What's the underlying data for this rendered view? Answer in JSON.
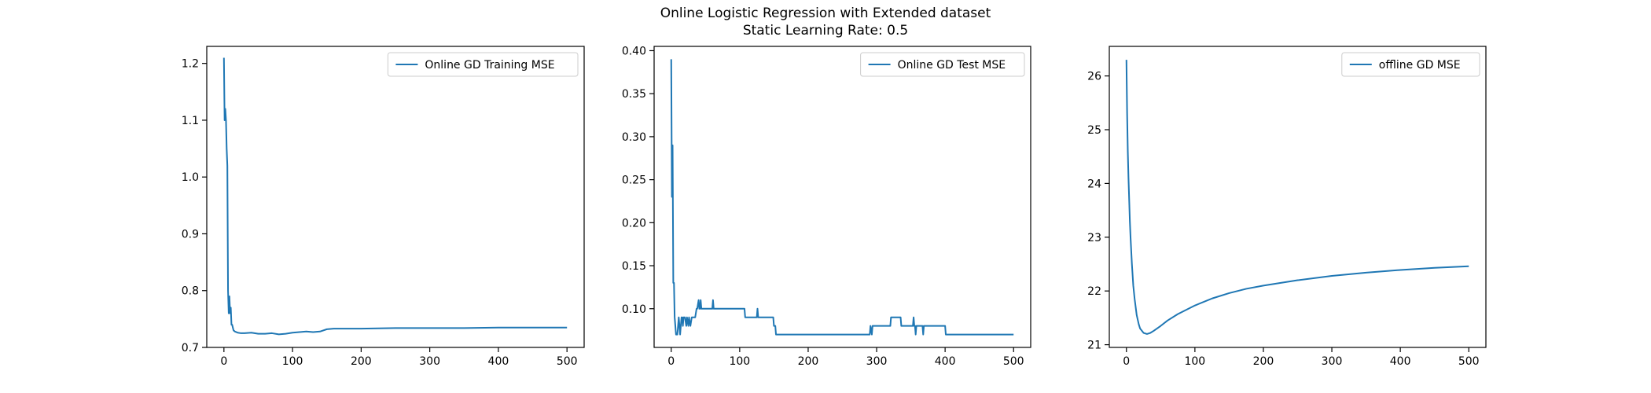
{
  "figure": {
    "title_line1": "Online Logistic Regression with Extended dataset",
    "title_line2": "Static Learning Rate: 0.5"
  },
  "line_color": "#1f77b4",
  "chart_data": [
    {
      "type": "line",
      "title": "",
      "xlabel": "",
      "ylabel": "",
      "xlim": [
        -25,
        525
      ],
      "ylim": [
        0.7,
        1.23
      ],
      "xticks": [
        0,
        100,
        200,
        300,
        400,
        500
      ],
      "yticks": [
        0.7,
        0.8,
        0.9,
        1.0,
        1.1,
        1.2
      ],
      "ytick_labels": [
        "0.7",
        "0.8",
        "0.9",
        "1.0",
        "1.1",
        "1.2"
      ],
      "legend_loc": "upper right",
      "grid": false,
      "series": [
        {
          "name": "Online GD Training MSE",
          "x": [
            0,
            1,
            2,
            3,
            4,
            5,
            6,
            7,
            8,
            9,
            10,
            11,
            12,
            13,
            14,
            16,
            20,
            25,
            30,
            40,
            50,
            60,
            70,
            80,
            90,
            100,
            110,
            120,
            130,
            140,
            150,
            160,
            200,
            250,
            300,
            350,
            400,
            450,
            500
          ],
          "y": [
            1.21,
            1.1,
            1.12,
            1.1,
            1.05,
            1.02,
            0.8,
            0.76,
            0.79,
            0.76,
            0.77,
            0.74,
            0.74,
            0.735,
            0.73,
            0.728,
            0.726,
            0.725,
            0.725,
            0.726,
            0.724,
            0.724,
            0.725,
            0.723,
            0.724,
            0.726,
            0.727,
            0.728,
            0.727,
            0.728,
            0.732,
            0.733,
            0.733,
            0.734,
            0.734,
            0.734,
            0.735,
            0.735,
            0.735
          ]
        }
      ]
    },
    {
      "type": "line",
      "title": "",
      "xlabel": "",
      "ylabel": "",
      "xlim": [
        -25,
        525
      ],
      "ylim": [
        0.055,
        0.405
      ],
      "xticks": [
        0,
        100,
        200,
        300,
        400,
        500
      ],
      "yticks": [
        0.1,
        0.15,
        0.2,
        0.25,
        0.3,
        0.35,
        0.4
      ],
      "ytick_labels": [
        "0.10",
        "0.15",
        "0.20",
        "0.25",
        "0.30",
        "0.35",
        "0.40"
      ],
      "legend_loc": "upper right",
      "grid": false,
      "series": [
        {
          "name": "Online GD Test MSE",
          "x": [
            0,
            1,
            2,
            3,
            4,
            5,
            6,
            7,
            8,
            9,
            10,
            11,
            12,
            13,
            14,
            15,
            16,
            17,
            18,
            19,
            20,
            22,
            23,
            25,
            26,
            28,
            30,
            31,
            35,
            37,
            38,
            40,
            41,
            42,
            43,
            44,
            45,
            60,
            61,
            62,
            63,
            107,
            108,
            125,
            126,
            127,
            149,
            150,
            152,
            153,
            290,
            291,
            293,
            294,
            303,
            304,
            320,
            321,
            335,
            336,
            353,
            354,
            355,
            356,
            357,
            358,
            367,
            368,
            369,
            370,
            400,
            401,
            500
          ],
          "y": [
            0.39,
            0.23,
            0.29,
            0.13,
            0.13,
            0.09,
            0.08,
            0.07,
            0.07,
            0.07,
            0.08,
            0.09,
            0.08,
            0.07,
            0.08,
            0.09,
            0.09,
            0.08,
            0.09,
            0.09,
            0.09,
            0.08,
            0.09,
            0.08,
            0.09,
            0.08,
            0.09,
            0.09,
            0.09,
            0.1,
            0.1,
            0.11,
            0.1,
            0.1,
            0.11,
            0.1,
            0.1,
            0.1,
            0.11,
            0.1,
            0.1,
            0.1,
            0.09,
            0.09,
            0.1,
            0.09,
            0.09,
            0.08,
            0.08,
            0.07,
            0.07,
            0.08,
            0.07,
            0.08,
            0.08,
            0.08,
            0.08,
            0.09,
            0.09,
            0.08,
            0.08,
            0.09,
            0.08,
            0.08,
            0.07,
            0.08,
            0.08,
            0.07,
            0.08,
            0.08,
            0.08,
            0.07,
            0.07
          ]
        }
      ]
    },
    {
      "type": "line",
      "title": "",
      "xlabel": "",
      "ylabel": "",
      "xlim": [
        -25,
        525
      ],
      "ylim": [
        20.95,
        26.55
      ],
      "xticks": [
        0,
        100,
        200,
        300,
        400,
        500
      ],
      "yticks": [
        21,
        22,
        23,
        24,
        25,
        26
      ],
      "ytick_labels": [
        "21",
        "22",
        "23",
        "24",
        "25",
        "26"
      ],
      "legend_loc": "upper right",
      "grid": false,
      "series": [
        {
          "name": "offline GD MSE",
          "x": [
            0,
            1,
            2,
            3,
            4,
            5,
            6,
            8,
            10,
            12,
            15,
            18,
            20,
            25,
            30,
            35,
            40,
            50,
            60,
            75,
            100,
            125,
            150,
            175,
            200,
            250,
            300,
            350,
            400,
            450,
            500
          ],
          "y": [
            26.3,
            25.3,
            24.6,
            24.1,
            23.7,
            23.3,
            23.0,
            22.5,
            22.1,
            21.85,
            21.55,
            21.38,
            21.3,
            21.22,
            21.2,
            21.22,
            21.26,
            21.35,
            21.45,
            21.57,
            21.73,
            21.86,
            21.96,
            22.04,
            22.1,
            22.2,
            22.28,
            22.34,
            22.39,
            22.43,
            22.46
          ]
        }
      ]
    }
  ]
}
